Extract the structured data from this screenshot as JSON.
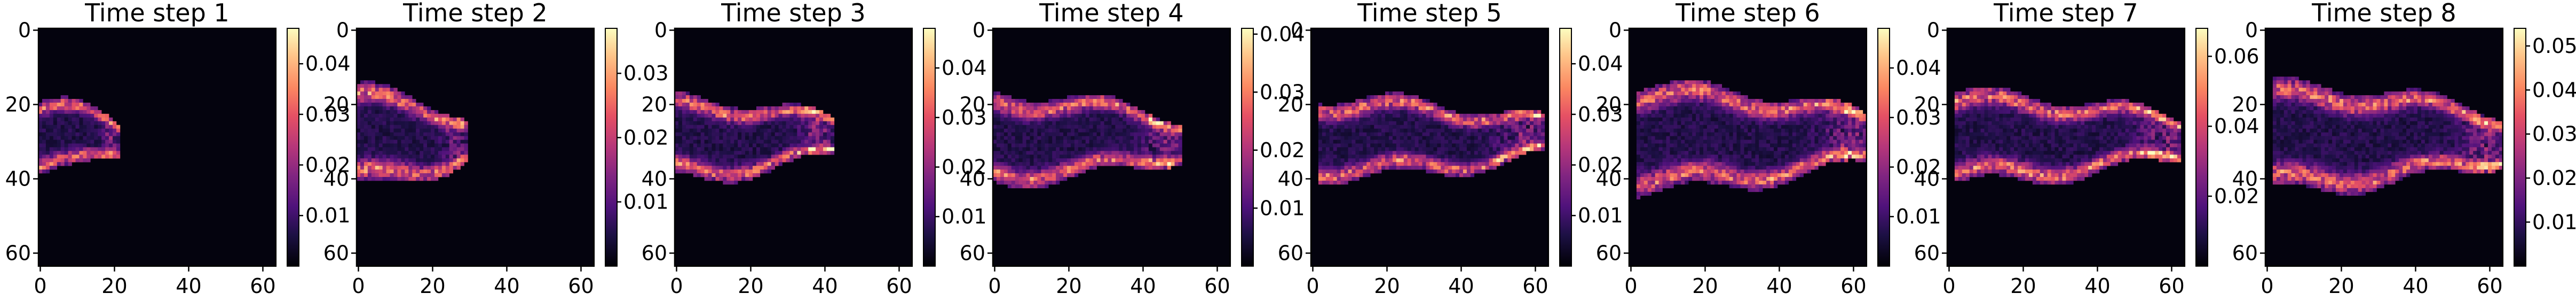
{
  "chart_data": [
    {
      "type": "heatmap",
      "title": "Time step 1",
      "x_ticks": [
        "0",
        "20",
        "40",
        "60"
      ],
      "y_ticks": [
        "0",
        "20",
        "40",
        "60"
      ],
      "colorbar_ticks": [
        "0.01",
        "0.02",
        "0.03",
        "0.04"
      ],
      "colorbar_range": [
        0.0,
        0.047
      ],
      "colormap": "magma",
      "grid": false
    },
    {
      "type": "heatmap",
      "title": "Time step 2",
      "x_ticks": [
        "0",
        "20",
        "40",
        "60"
      ],
      "y_ticks": [
        "0",
        "20",
        "40",
        "60"
      ],
      "colorbar_ticks": [
        "0.01",
        "0.02",
        "0.03"
      ],
      "colorbar_range": [
        0.0,
        0.037
      ],
      "colormap": "magma",
      "grid": false
    },
    {
      "type": "heatmap",
      "title": "Time step 3",
      "x_ticks": [
        "0",
        "20",
        "40",
        "60"
      ],
      "y_ticks": [
        "0",
        "20",
        "40",
        "60"
      ],
      "colorbar_ticks": [
        "0.01",
        "0.02",
        "0.03",
        "0.04"
      ],
      "colorbar_range": [
        0.0,
        0.048
      ],
      "colormap": "magma",
      "grid": false
    },
    {
      "type": "heatmap",
      "title": "Time step 4",
      "x_ticks": [
        "0",
        "20",
        "40",
        "60"
      ],
      "y_ticks": [
        "0",
        "20",
        "40",
        "60"
      ],
      "colorbar_ticks": [
        "0.01",
        "0.02",
        "0.03",
        "0.04"
      ],
      "colorbar_range": [
        0.0,
        0.041
      ],
      "colormap": "magma",
      "grid": false
    },
    {
      "type": "heatmap",
      "title": "Time step 5",
      "x_ticks": [
        "0",
        "20",
        "40",
        "60"
      ],
      "y_ticks": [
        "0",
        "20",
        "40",
        "60"
      ],
      "colorbar_ticks": [
        "0.01",
        "0.02",
        "0.03",
        "0.04"
      ],
      "colorbar_range": [
        0.0,
        0.047
      ],
      "colormap": "magma",
      "grid": false
    },
    {
      "type": "heatmap",
      "title": "Time step 6",
      "x_ticks": [
        "0",
        "20",
        "40",
        "60"
      ],
      "y_ticks": [
        "0",
        "20",
        "40",
        "60"
      ],
      "colorbar_ticks": [
        "0.01",
        "0.02",
        "0.03",
        "0.04"
      ],
      "colorbar_range": [
        0.0,
        0.048
      ],
      "colormap": "magma",
      "grid": false
    },
    {
      "type": "heatmap",
      "title": "Time step 7",
      "x_ticks": [
        "0",
        "20",
        "40",
        "60"
      ],
      "y_ticks": [
        "0",
        "20",
        "40",
        "60"
      ],
      "colorbar_ticks": [
        "0.02",
        "0.04",
        "0.06"
      ],
      "colorbar_range": [
        0.0,
        0.068
      ],
      "colormap": "magma",
      "grid": false
    },
    {
      "type": "heatmap",
      "title": "Time step 8",
      "x_ticks": [
        "0",
        "20",
        "40",
        "60"
      ],
      "y_ticks": [
        "0",
        "20",
        "40",
        "60"
      ],
      "colorbar_ticks": [
        "0.01",
        "0.02",
        "0.03",
        "0.04",
        "0.05"
      ],
      "colorbar_range": [
        0.0,
        0.054
      ],
      "colormap": "magma",
      "grid": false
    }
  ]
}
